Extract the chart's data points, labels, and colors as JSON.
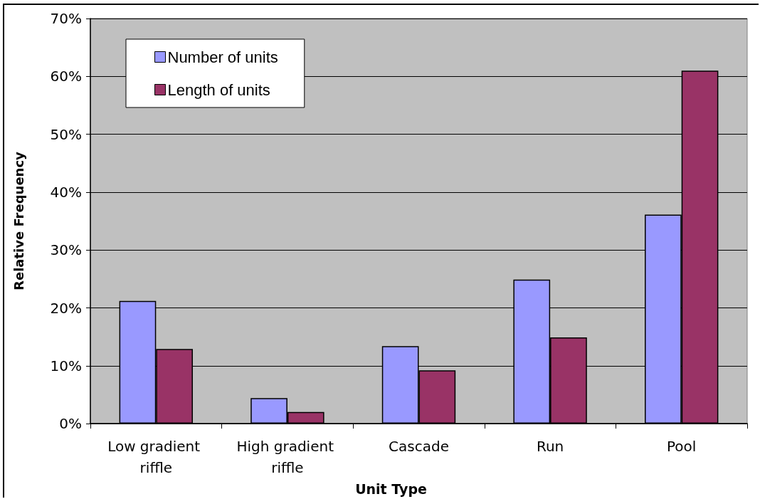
{
  "chart_data": {
    "type": "bar",
    "xlabel": "Unit Type",
    "ylabel": "Relative Frequency",
    "categories": [
      "Low gradient riffle",
      "High gradient riffle",
      "Cascade",
      "Run",
      "Pool"
    ],
    "series": [
      {
        "name": "Number of units",
        "color": "#9999ff",
        "values": [
          21.2,
          4.4,
          13.4,
          24.9,
          36.1
        ]
      },
      {
        "name": "Length of units",
        "color": "#993366",
        "values": [
          12.9,
          2.0,
          9.2,
          14.9,
          61.0
        ]
      }
    ],
    "ylim": [
      0,
      70
    ],
    "yticks": [
      {
        "value": 0,
        "label": "0%"
      },
      {
        "value": 10,
        "label": "10%"
      },
      {
        "value": 20,
        "label": "20%"
      },
      {
        "value": 30,
        "label": "30%"
      },
      {
        "value": 40,
        "label": "40%"
      },
      {
        "value": 50,
        "label": "50%"
      },
      {
        "value": 60,
        "label": "60%"
      },
      {
        "value": 70,
        "label": "70%"
      }
    ],
    "grid": "y",
    "legend": "top left"
  }
}
